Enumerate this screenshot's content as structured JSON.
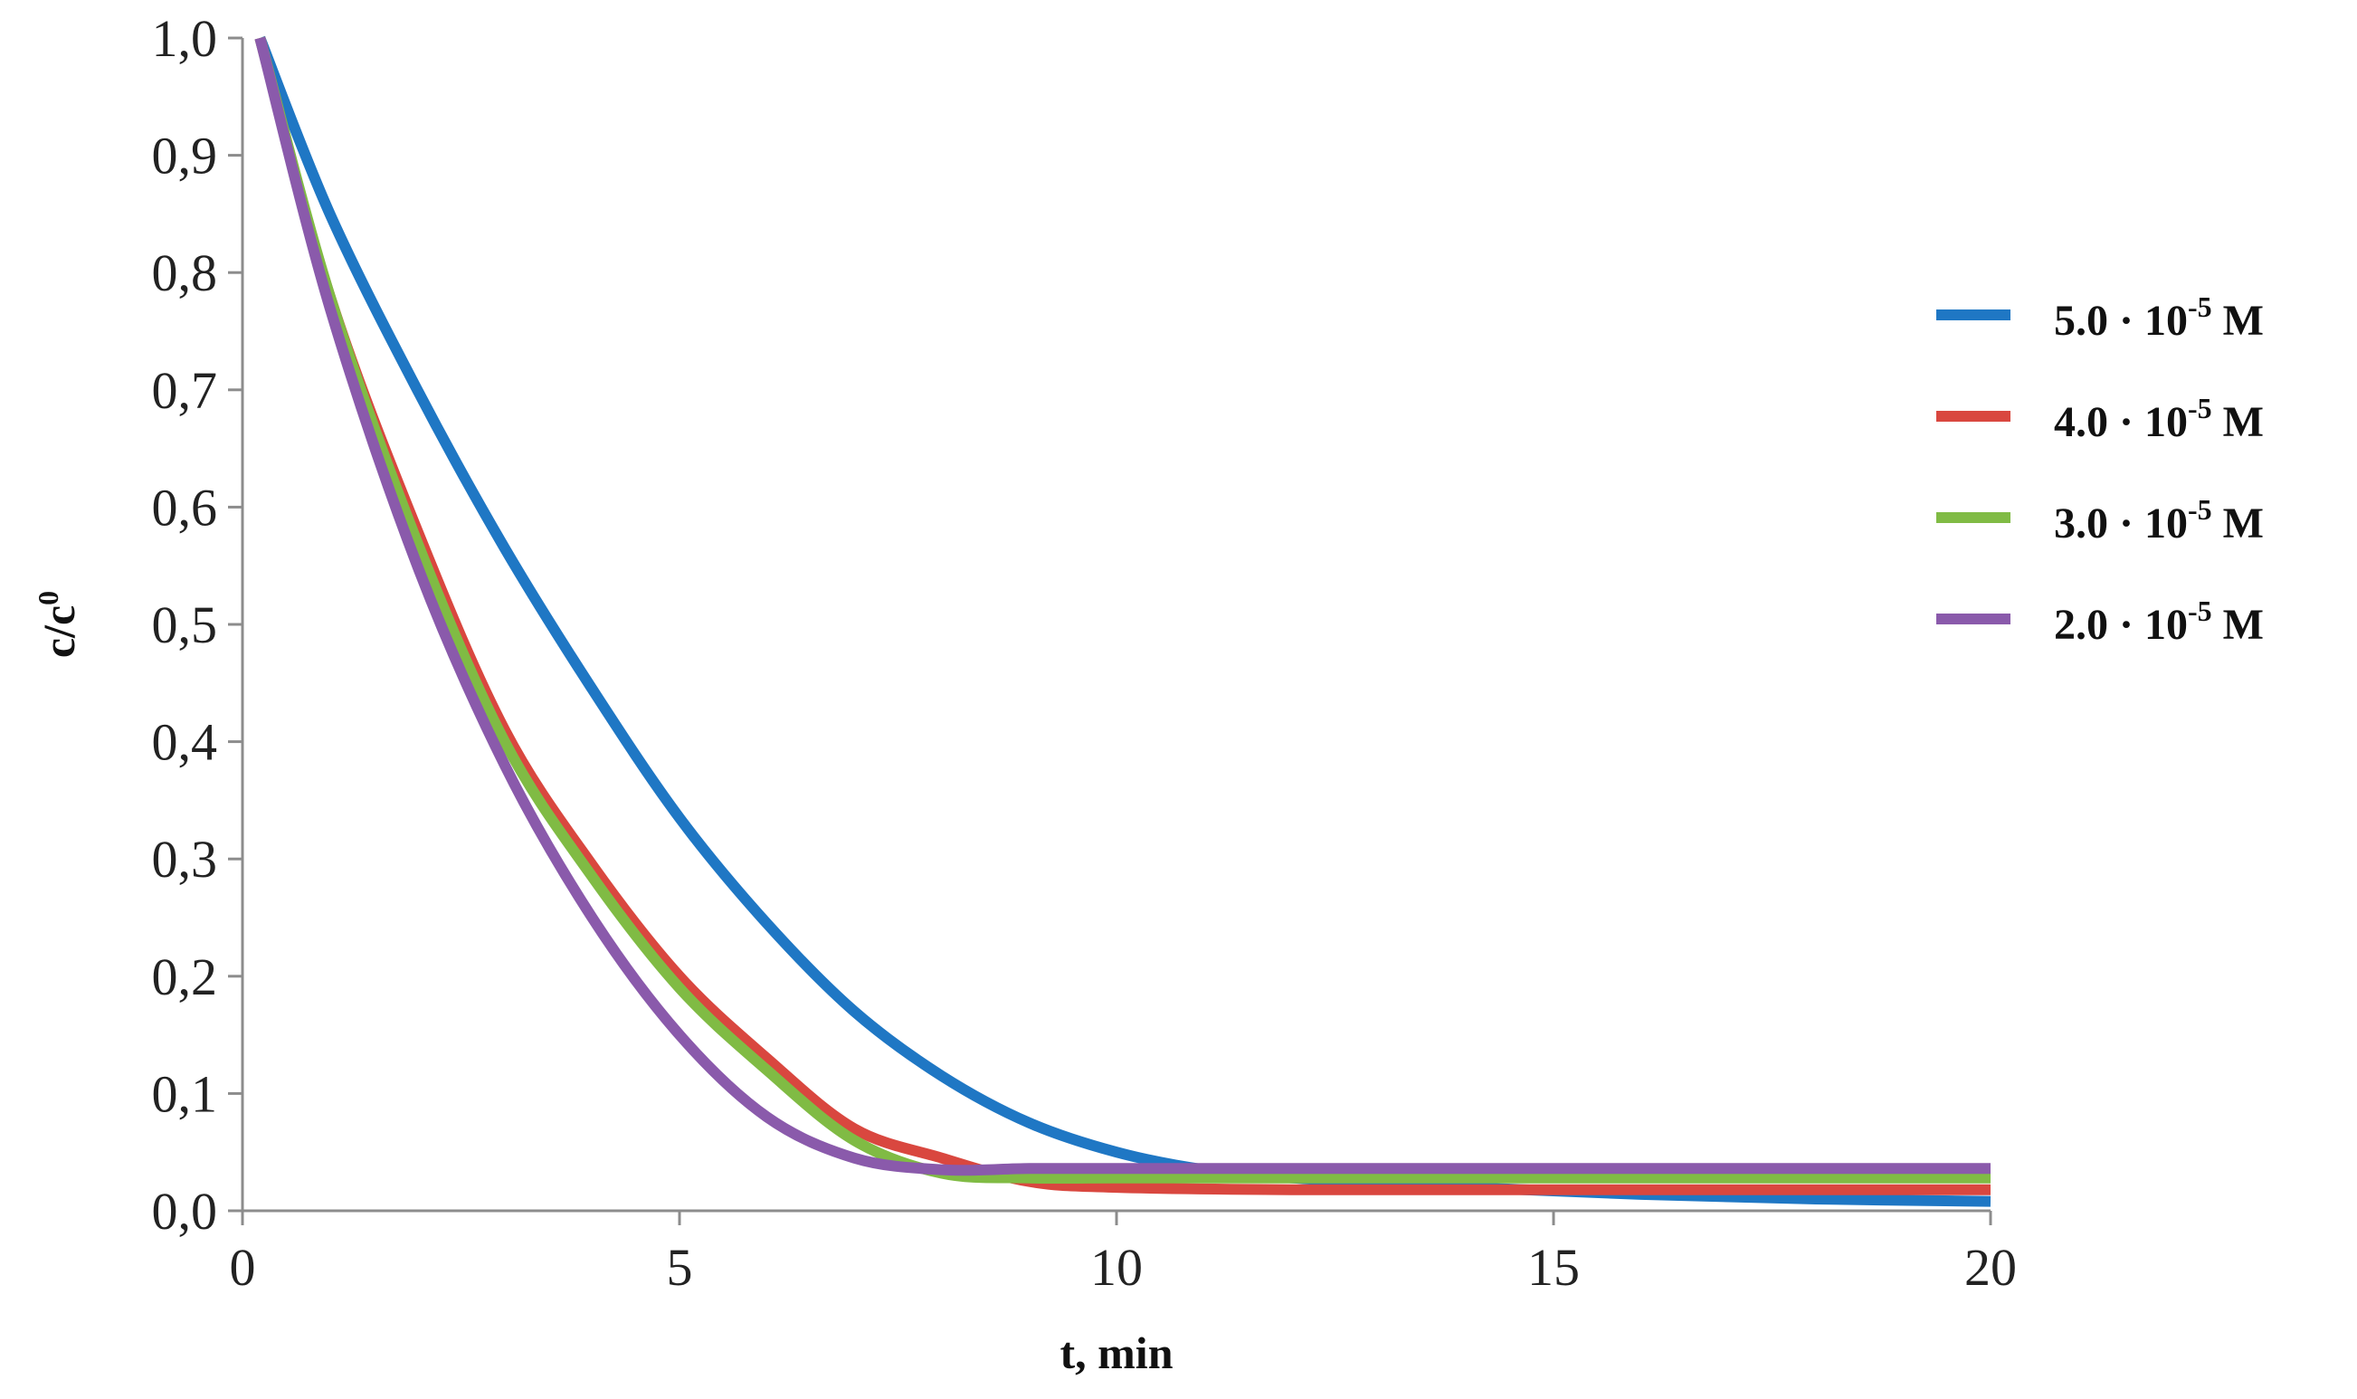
{
  "chart_data": {
    "type": "line",
    "xlabel": "t, min",
    "ylabel": "c/c",
    "ylabel_sup": "0",
    "xlim": [
      0,
      20
    ],
    "ylim": [
      0.0,
      1.0
    ],
    "xticks": [
      "0",
      "5",
      "10",
      "15",
      "20"
    ],
    "yticks": [
      "0,0",
      "0,1",
      "0,2",
      "0,3",
      "0,4",
      "0,5",
      "0,6",
      "0,7",
      "0,8",
      "0,9",
      "1,0"
    ],
    "grid": false,
    "legend_position": "right",
    "series": [
      {
        "name": "5.0 · 10",
        "name_sup": "-5",
        "name_suffix": " M",
        "color": "#1f77c4",
        "x": [
          0.2,
          1,
          2,
          3,
          4,
          5,
          6,
          7,
          8,
          9,
          10,
          11,
          12,
          14,
          16,
          18,
          20
        ],
        "y": [
          1.0,
          0.85,
          0.7,
          0.565,
          0.445,
          0.335,
          0.245,
          0.17,
          0.115,
          0.075,
          0.05,
          0.035,
          0.028,
          0.02,
          0.014,
          0.01,
          0.008
        ]
      },
      {
        "name": "4.0 · 10",
        "name_sup": "-5",
        "name_suffix": " M",
        "color": "#d9473f",
        "x": [
          0.2,
          1,
          2,
          3,
          4,
          5,
          6,
          7,
          8,
          9,
          10,
          12,
          15,
          20
        ],
        "y": [
          1.0,
          0.78,
          0.58,
          0.41,
          0.295,
          0.2,
          0.13,
          0.07,
          0.045,
          0.025,
          0.02,
          0.018,
          0.018,
          0.018
        ]
      },
      {
        "name": "3.0 · 10",
        "name_sup": "-5",
        "name_suffix": " M",
        "color": "#80bb44",
        "x": [
          0.2,
          1,
          2,
          3,
          4,
          5,
          6,
          7,
          8,
          9,
          10,
          12,
          15,
          20
        ],
        "y": [
          1.0,
          0.78,
          0.57,
          0.4,
          0.285,
          0.19,
          0.12,
          0.06,
          0.032,
          0.028,
          0.028,
          0.028,
          0.028,
          0.028
        ]
      },
      {
        "name": "2.0 · 10",
        "name_sup": "-5",
        "name_suffix": " M",
        "color": "#8a5aab",
        "x": [
          0.2,
          1,
          2,
          3,
          4,
          5,
          6,
          7,
          8,
          9,
          10,
          12,
          15,
          20
        ],
        "y": [
          1.0,
          0.77,
          0.55,
          0.38,
          0.25,
          0.15,
          0.08,
          0.045,
          0.035,
          0.036,
          0.036,
          0.036,
          0.036,
          0.036
        ]
      }
    ]
  }
}
